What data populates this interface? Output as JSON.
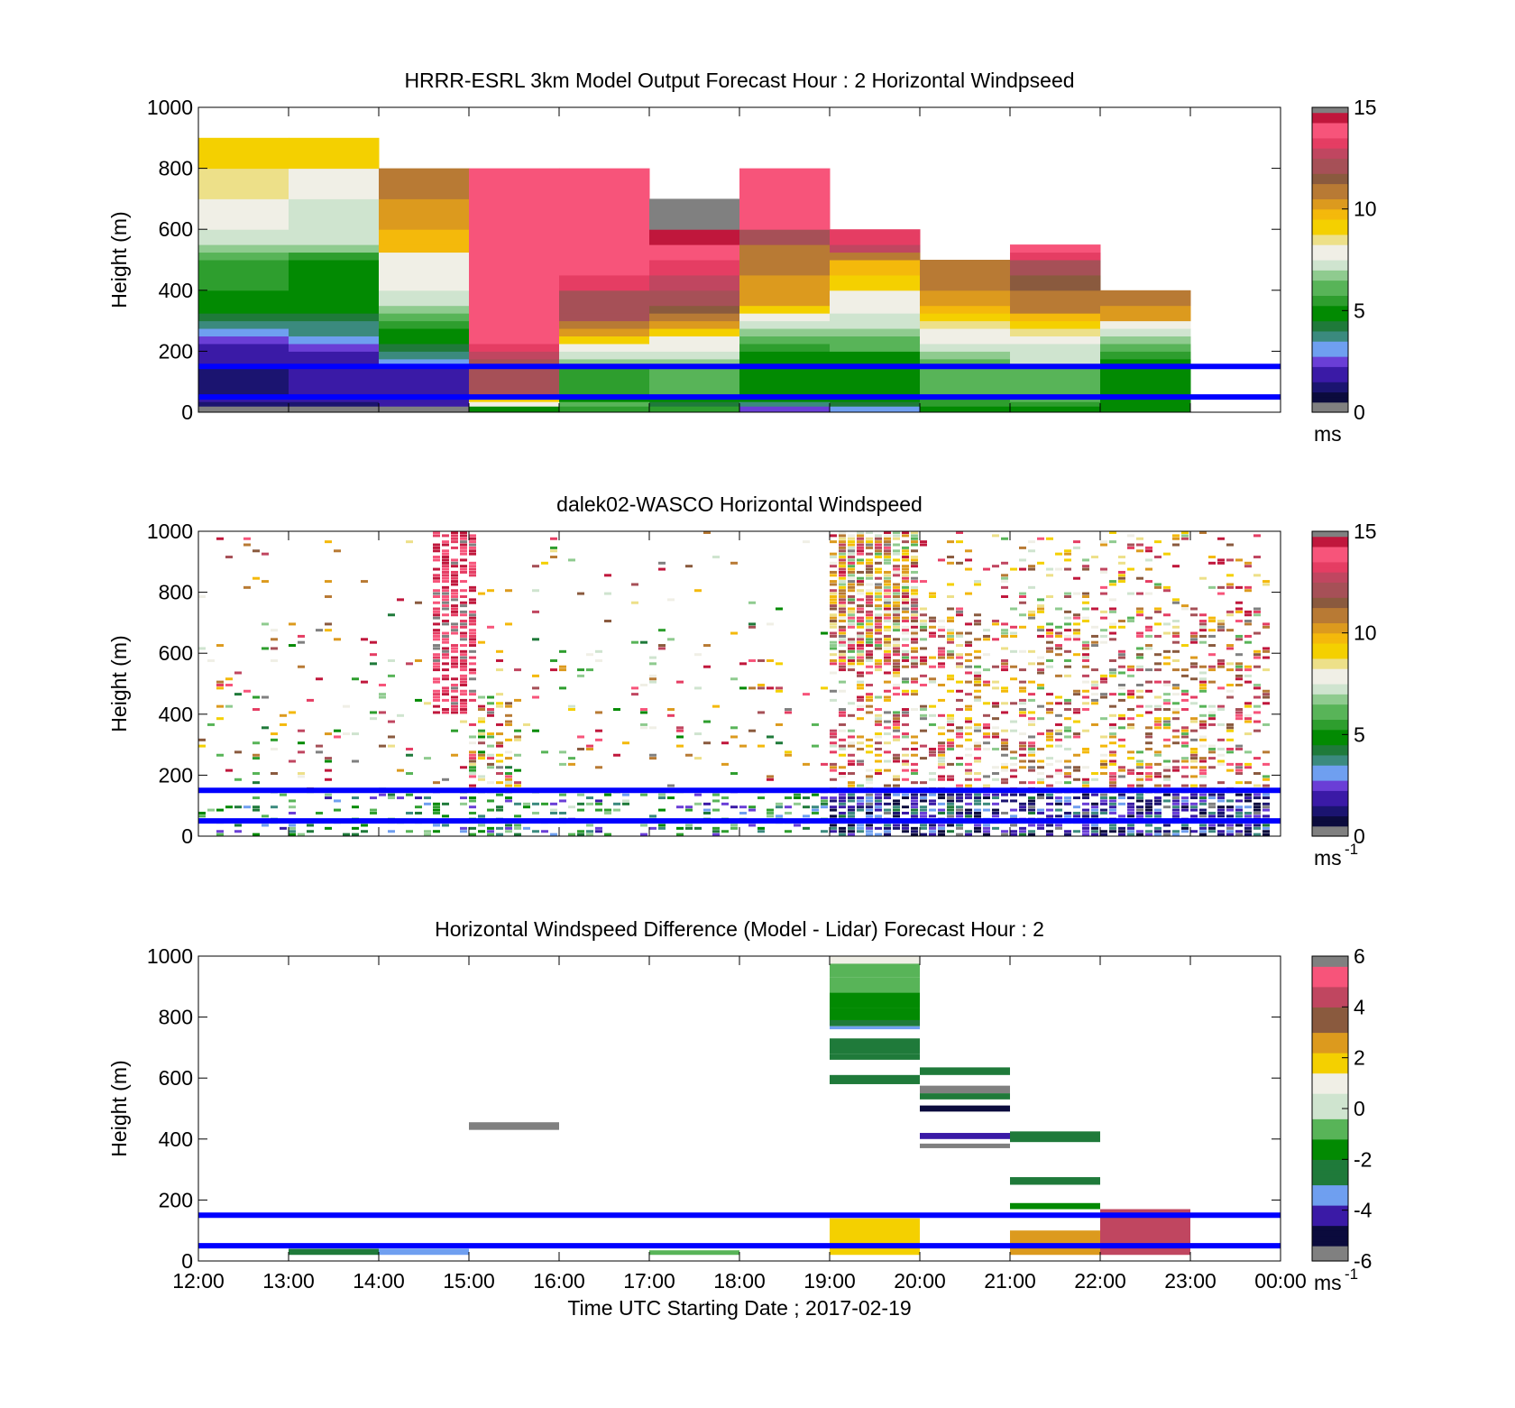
{
  "palette": {
    "speed": [
      "#808080",
      "#0b0b3d",
      "#1b1470",
      "#3a1aa6",
      "#6a3ed6",
      "#6f9ff0",
      "#3b8a7e",
      "#1f7a3a",
      "#028a02",
      "#2e9e2e",
      "#58b458",
      "#8fcb8f",
      "#cfe4cf",
      "#f0efe6",
      "#ede089",
      "#f4d000",
      "#f4b90b",
      "#dc9a1e",
      "#b87a34",
      "#8a5a3e",
      "#a65057",
      "#c04660",
      "#e53d63",
      "#f7547a",
      "#c0173c",
      "#808080"
    ],
    "diff": [
      "#808080",
      "#0b0b3d",
      "#3a1aa6",
      "#6f9ff0",
      "#1f7a3a",
      "#028a02",
      "#58b458",
      "#cfe4cf",
      "#f0efe6",
      "#f4d000",
      "#dc9a1e",
      "#8a5a3e",
      "#c04660",
      "#f7547a",
      "#808080"
    ],
    "heights_line": "#0000ff"
  },
  "x_ticks": [
    "12:00",
    "13:00",
    "14:00",
    "15:00",
    "16:00",
    "17:00",
    "18:00",
    "19:00",
    "20:00",
    "21:00",
    "22:00",
    "23:00",
    "00:00"
  ],
  "y_ticks": [
    "0",
    "200",
    "400",
    "600",
    "800",
    "1000"
  ],
  "reference_heights_m": [
    50,
    150
  ],
  "panels": [
    {
      "title": "HRRR-ESRL 3km Model Output   Forecast Hour : 2 Horizontal Windpseed",
      "ylabel": "Height (m)",
      "colorbar": {
        "ticks": [
          "0",
          "5",
          "10",
          "15"
        ],
        "unit": "ms",
        "unit_sup": ""
      }
    },
    {
      "title": "dalek02-WASCO  Horizontal Windspeed",
      "ylabel": "Height (m)",
      "colorbar": {
        "ticks": [
          "0",
          "5",
          "10",
          "15"
        ],
        "unit": "ms",
        "unit_sup": "-1"
      }
    },
    {
      "title": "Horizontal Windspeed Difference (Model - Lidar) Forecast Hour : 2",
      "ylabel": "Height (m)",
      "xlabel": "Time UTC  Starting Date ; 2017-02-19",
      "colorbar": {
        "ticks": [
          "-6",
          "-4",
          "-2",
          "0",
          "2",
          "4",
          "6"
        ],
        "unit": "ms",
        "unit_sup": "-1"
      }
    }
  ],
  "chart_data": [
    {
      "type": "heatmap",
      "title": "HRRR-ESRL 3km Model Output   Forecast Hour : 2 Horizontal Windpseed",
      "ylabel": "Height (m)",
      "xlim_hours_utc": [
        12,
        24
      ],
      "ylim": [
        0,
        1000
      ],
      "clim": [
        0,
        15
      ],
      "x_hours_utc": [
        12,
        13,
        14,
        15,
        16,
        17,
        18,
        19,
        20,
        21,
        22
      ],
      "bin_top_heights_m": [
        20,
        35,
        50,
        150,
        175,
        200,
        225,
        250,
        275,
        300,
        325,
        350,
        400,
        450,
        500,
        525,
        550,
        600,
        700,
        800,
        900,
        1000
      ],
      "columns_speed_ms": [
        [
          0,
          1,
          1.5,
          1,
          1.5,
          1.5,
          2,
          2.5,
          3,
          3.5,
          4,
          4.5,
          5,
          5.5,
          5.5,
          6,
          6.5,
          7,
          8,
          8.5,
          9
        ],
        [
          0,
          1,
          2,
          1.5,
          2,
          2,
          2.5,
          3,
          3.5,
          3.5,
          4,
          4.5,
          5,
          5,
          5,
          5.5,
          6.5,
          7,
          7,
          7.5,
          9
        ],
        [
          0,
          2,
          2,
          2,
          3,
          3.5,
          4,
          4.5,
          5,
          5.5,
          6,
          6.5,
          7,
          7.5,
          7.5,
          8,
          9.5,
          9.5,
          10,
          11
        ],
        [
          5,
          7.5,
          9,
          12,
          12,
          12.5,
          13,
          13.5,
          14,
          14,
          14,
          14,
          14,
          14,
          14,
          14,
          14,
          14,
          14,
          14
        ],
        [
          5.5,
          6,
          4.5,
          5.5,
          6.5,
          7,
          8,
          9,
          10,
          11,
          12,
          12,
          12,
          13,
          13.5,
          13.5,
          13.5,
          14,
          14,
          13.5
        ],
        [
          5.5,
          4,
          4.5,
          6,
          6.5,
          7,
          7.5,
          8,
          9,
          10,
          11,
          11.5,
          12,
          12.5,
          13,
          13.5,
          14,
          14.5,
          15
        ],
        [
          2.5,
          3.5,
          4.5,
          5,
          5,
          5,
          5.5,
          6,
          6.5,
          7,
          8,
          9,
          10,
          10,
          10.5,
          10.5,
          11,
          12,
          13.5,
          14
        ],
        [
          3,
          4,
          5,
          5,
          5,
          5,
          6,
          6,
          6.5,
          7,
          7,
          7.5,
          8,
          9,
          9.5,
          10.5,
          12.5,
          13
        ],
        [
          4.5,
          5.5,
          5.5,
          6,
          6,
          6.5,
          7,
          7.5,
          8,
          8.5,
          9,
          9.5,
          10,
          10.5,
          11
        ],
        [
          5,
          5.5,
          6,
          6,
          7,
          7,
          7,
          8,
          8.5,
          9,
          9.5,
          10.5,
          11,
          11.5,
          12,
          13,
          14
        ],
        [
          4.5,
          5,
          5,
          5,
          5,
          5.5,
          6,
          6.5,
          7,
          7.5,
          10,
          10,
          11
        ]
      ]
    },
    {
      "type": "heatmap",
      "title": "dalek02-WASCO  Horizontal Windspeed",
      "ylabel": "Height (m)",
      "xlim_hours_utc": [
        12,
        24
      ],
      "ylim": [
        0,
        1000
      ],
      "clim": [
        0,
        15
      ],
      "note_values": "sparse lidar retrievals; mostly missing above 200 m before 18:00, dense 0-4 m/s below 150 m after 19:00, 10-14 m/s aloft after 19:00"
    },
    {
      "type": "heatmap",
      "title": "Horizontal Windspeed Difference (Model - Lidar) Forecast Hour : 2",
      "xlabel": "Time UTC  Starting Date ; 2017-02-19",
      "ylabel": "Height (m)",
      "xlim_hours_utc": [
        12,
        24
      ],
      "ylim": [
        0,
        1000
      ],
      "clim": [
        -6,
        6
      ],
      "cells": [
        {
          "t0": 13,
          "t1": 14,
          "z0": 20,
          "z1": 40,
          "v": -2.5
        },
        {
          "t0": 14,
          "t1": 15,
          "z0": 20,
          "z1": 40,
          "v": -3.5
        },
        {
          "t0": 15,
          "t1": 16,
          "z0": 430,
          "z1": 455,
          "v": 6.5
        },
        {
          "t0": 17,
          "t1": 18,
          "z0": 20,
          "z1": 35,
          "v": -0.5
        },
        {
          "t0": 19,
          "t1": 20,
          "z0": 975,
          "z1": 1000,
          "v": 0.5
        },
        {
          "t0": 19,
          "t1": 20,
          "z0": 930,
          "z1": 975,
          "v": -0.8
        },
        {
          "t0": 19,
          "t1": 20,
          "z0": 880,
          "z1": 930,
          "v": -1.2
        },
        {
          "t0": 19,
          "t1": 20,
          "z0": 830,
          "z1": 880,
          "v": -1.6
        },
        {
          "t0": 19,
          "t1": 20,
          "z0": 790,
          "z1": 830,
          "v": -2
        },
        {
          "t0": 19,
          "t1": 20,
          "z0": 770,
          "z1": 790,
          "v": -3
        },
        {
          "t0": 19,
          "t1": 20,
          "z0": 760,
          "z1": 770,
          "v": -3.5
        },
        {
          "t0": 19,
          "t1": 20,
          "z0": 680,
          "z1": 730,
          "v": -2.8
        },
        {
          "t0": 19,
          "t1": 20,
          "z0": 660,
          "z1": 680,
          "v": -3
        },
        {
          "t0": 19,
          "t1": 20,
          "z0": 580,
          "z1": 610,
          "v": -2.5
        },
        {
          "t0": 19,
          "t1": 20,
          "z0": 20,
          "z1": 140,
          "v": 1.8
        },
        {
          "t0": 20,
          "t1": 21,
          "z0": 610,
          "z1": 635,
          "v": -2.5
        },
        {
          "t0": 20,
          "t1": 21,
          "z0": 550,
          "z1": 575,
          "v": 6
        },
        {
          "t0": 20,
          "t1": 21,
          "z0": 530,
          "z1": 550,
          "v": -3
        },
        {
          "t0": 20,
          "t1": 21,
          "z0": 490,
          "z1": 510,
          "v": -5.5
        },
        {
          "t0": 20,
          "t1": 21,
          "z0": 400,
          "z1": 420,
          "v": -4.5
        },
        {
          "t0": 20,
          "t1": 21,
          "z0": 370,
          "z1": 385,
          "v": 6.5
        },
        {
          "t0": 21,
          "t1": 22,
          "z0": 390,
          "z1": 425,
          "v": -2.5
        },
        {
          "t0": 21,
          "t1": 22,
          "z0": 250,
          "z1": 275,
          "v": -2.5
        },
        {
          "t0": 21,
          "t1": 22,
          "z0": 170,
          "z1": 190,
          "v": -1.5
        },
        {
          "t0": 21,
          "t1": 22,
          "z0": 20,
          "z1": 100,
          "v": 2.5
        },
        {
          "t0": 22,
          "t1": 23,
          "z0": 20,
          "z1": 170,
          "v": 4
        }
      ]
    }
  ]
}
